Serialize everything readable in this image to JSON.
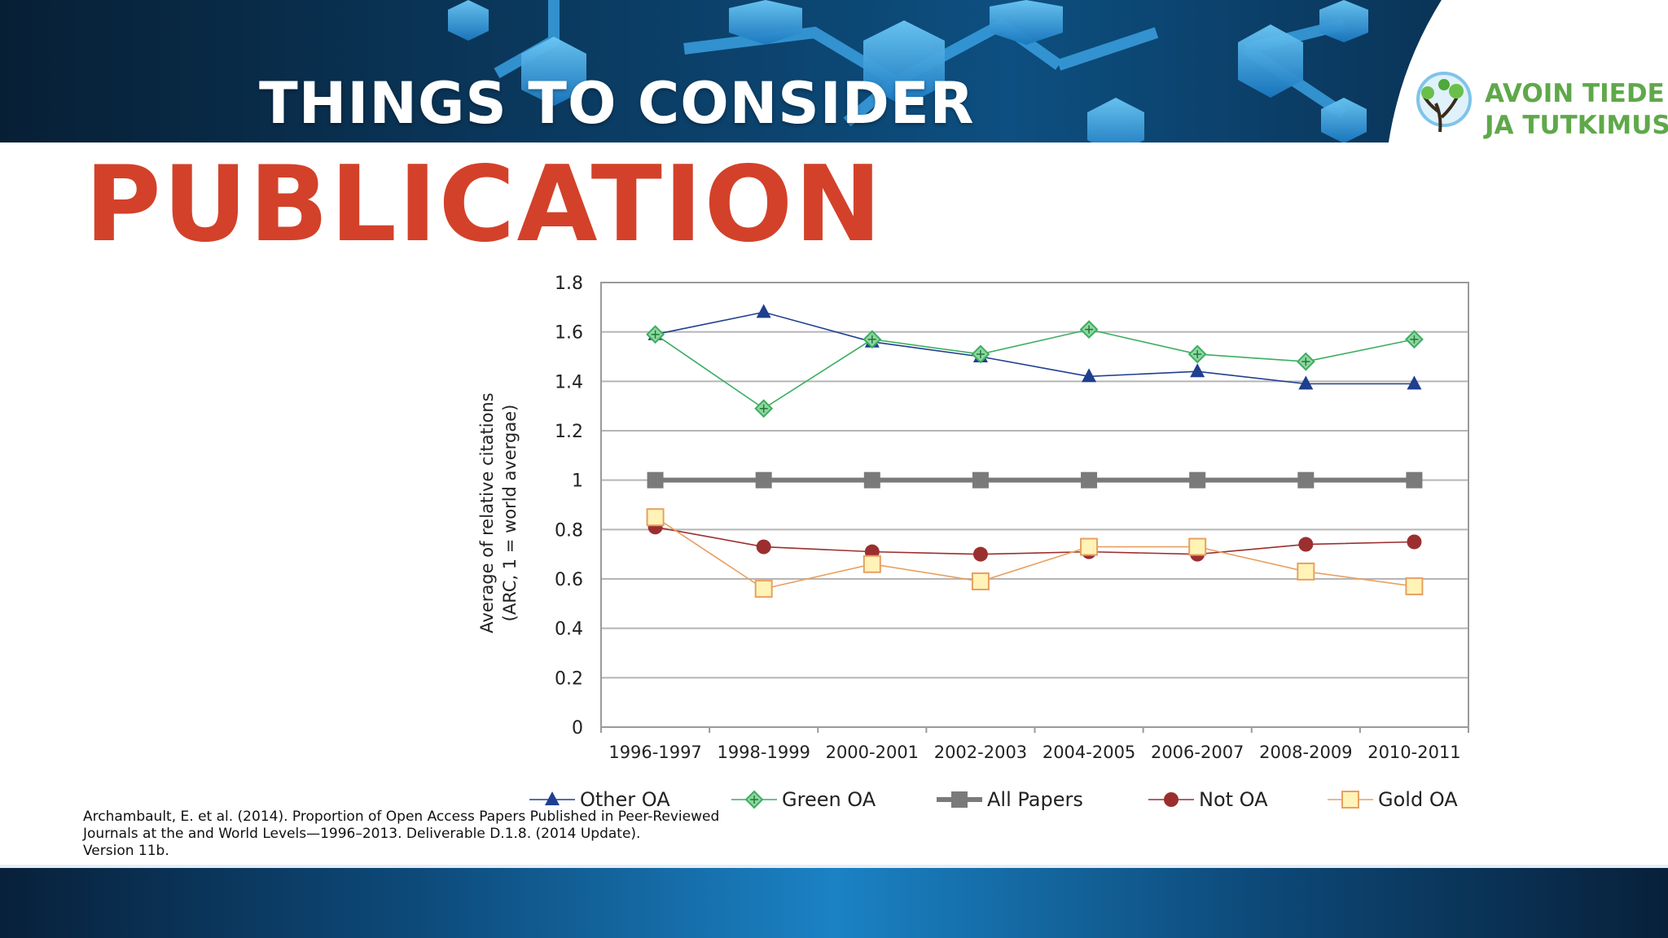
{
  "header": {
    "section_title": "THINGS TO CONSIDER",
    "logo_line1": "AVOIN TIEDE",
    "logo_line2": "JA TUTKIMUS",
    "banner_colors": [
      "#071f35",
      "#0e5487",
      "#1f8fd6",
      "#43b3ef"
    ]
  },
  "main_title": "PUBLICATION",
  "citation": {
    "line1": "Archambault, E. et al. (2014). Proportion of Open Access Papers Published in Peer-Reviewed",
    "line2": "Journals at the  and World Levels—1996–2013. Deliverable D.1.8. (2014 Update).",
    "line3": "Version 11b."
  },
  "chart_data": {
    "type": "line",
    "ylabel_line1": "Average of relative citations",
    "ylabel_line2": "(ARC, 1 = world avergae)",
    "categories": [
      "1996-1997",
      "1998-1999",
      "2000-2001",
      "2002-2003",
      "2004-2005",
      "2006-2007",
      "2008-2009",
      "2010-2011"
    ],
    "ylim": [
      0,
      1.8
    ],
    "yticks": [
      "0",
      "0.2",
      "0.4",
      "0.6",
      "0.8",
      "1",
      "1.2",
      "1.4",
      "1.6",
      "1.8"
    ],
    "grid": true,
    "legend_position": "bottom",
    "series": [
      {
        "name": "Other OA",
        "marker": "triangle",
        "color": "#1f3f8f",
        "values": [
          1.59,
          1.68,
          1.56,
          1.5,
          1.42,
          1.44,
          1.39,
          1.39
        ]
      },
      {
        "name": "Green OA",
        "marker": "diamond",
        "color": "#3cae60",
        "values": [
          1.59,
          1.29,
          1.57,
          1.51,
          1.61,
          1.51,
          1.48,
          1.57
        ]
      },
      {
        "name": "All Papers",
        "marker": "square",
        "color": "#7a7a7a",
        "values": [
          1,
          1,
          1,
          1,
          1,
          1,
          1,
          1
        ]
      },
      {
        "name": "Not OA",
        "marker": "circle",
        "color": "#9b2f2f",
        "values": [
          0.81,
          0.73,
          0.71,
          0.7,
          0.71,
          0.7,
          0.74,
          0.75
        ]
      },
      {
        "name": "Gold OA",
        "marker": "open-square",
        "color": "#e8a060",
        "values": [
          0.85,
          0.56,
          0.66,
          0.59,
          0.73,
          0.73,
          0.63,
          0.57
        ]
      }
    ]
  }
}
